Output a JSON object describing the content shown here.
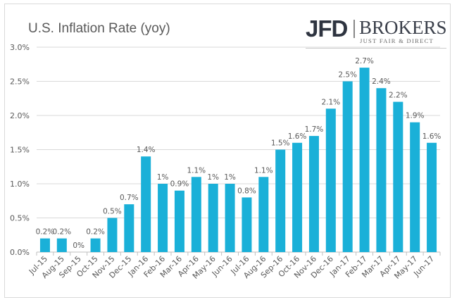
{
  "chart_data": {
    "type": "bar",
    "title": "U.S. Inflation Rate (yoy)",
    "categories": [
      "Jul-15",
      "Aug-15",
      "Sep-15",
      "Oct-15",
      "Nov-15",
      "Dec-15",
      "Jan-16",
      "Feb-16",
      "Mar-16",
      "Apr-16",
      "May-16",
      "Jun-16",
      "Jul-16",
      "Aug-16",
      "Sep-16",
      "Oct-16",
      "Nov-16",
      "Dec-16",
      "Jan-17",
      "Feb-17",
      "Mar-17",
      "Apr-17",
      "May-17",
      "Jun-17"
    ],
    "values": [
      0.2,
      0.2,
      0,
      0.2,
      0.5,
      0.7,
      1.4,
      1,
      0.9,
      1.1,
      1,
      1,
      0.8,
      1.1,
      1.5,
      1.6,
      1.7,
      2.1,
      2.5,
      2.7,
      2.4,
      2.2,
      1.9,
      1.6
    ],
    "data_labels": [
      "0.2%",
      "0.2%",
      "0%",
      "0.2%",
      "0.5%",
      "0.7%",
      "1.4%",
      "1%",
      "0.9%",
      "1.1%",
      "1%",
      "1%",
      "0.8%",
      "1.1%",
      "1.5%",
      "1.6%",
      "1.7%",
      "2.1%",
      "2.5%",
      "2.7%",
      "2.4%",
      "2.2%",
      "1.9%",
      "1.6%"
    ],
    "yticks": [
      "0.0%",
      "0.5%",
      "1.0%",
      "1.5%",
      "2.0%",
      "2.5%",
      "3.0%"
    ],
    "ylim": [
      0,
      3.0
    ],
    "xlabel": "",
    "ylabel": "",
    "grid": true,
    "bar_color": "#1ab0d8"
  },
  "logo": {
    "name": "JFD",
    "brand": "BROKERS",
    "tagline": "JUST FAIR & DIRECT"
  }
}
